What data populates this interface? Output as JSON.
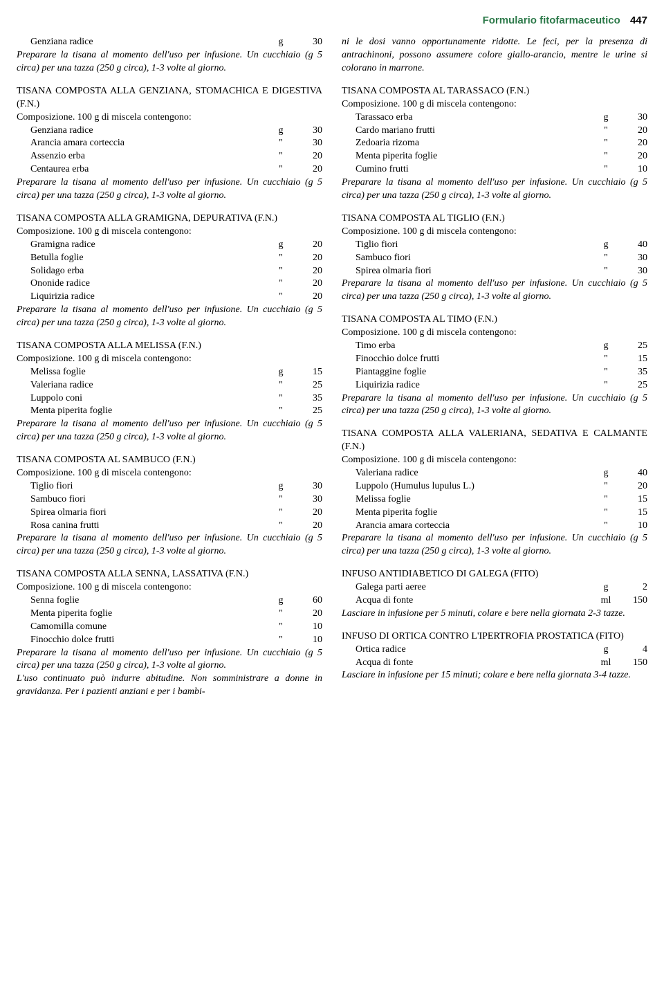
{
  "header": {
    "title": "Formulario fitofarmaceutico",
    "page": "447"
  },
  "comp_text": "Composizione. 100 g di miscela contengono:",
  "instr_std": "Preparare la tisana al momento dell'uso per infusione. Un cucchiaio (g 5 circa) per una tazza (250 g circa), 1-3 volte al giorno.",
  "left": {
    "pre_ingredients": [
      {
        "name": "Genziana radice",
        "unit": "g",
        "amount": "30"
      }
    ],
    "recipes": [
      {
        "title": "TISANA COMPOSTA ALLA GENZIANA, STOMACHICA E DIGESTIVA (F.N.)",
        "ingredients": [
          {
            "name": "Genziana radice",
            "unit": "g",
            "amount": "30"
          },
          {
            "name": "Arancia amara corteccia",
            "unit": "\"",
            "amount": "30"
          },
          {
            "name": "Assenzio erba",
            "unit": "\"",
            "amount": "20"
          },
          {
            "name": "Centaurea erba",
            "unit": "\"",
            "amount": "20"
          }
        ]
      },
      {
        "title": "TISANA COMPOSTA ALLA GRAMIGNA, DEPURATIVA (F.N.)",
        "ingredients": [
          {
            "name": "Gramigna radice",
            "unit": "g",
            "amount": "20"
          },
          {
            "name": "Betulla foglie",
            "unit": "\"",
            "amount": "20"
          },
          {
            "name": "Solidago erba",
            "unit": "\"",
            "amount": "20"
          },
          {
            "name": "Ononide radice",
            "unit": "\"",
            "amount": "20"
          },
          {
            "name": "Liquirizia radice",
            "unit": "\"",
            "amount": "20"
          }
        ]
      },
      {
        "title": "TISANA COMPOSTA ALLA MELISSA (F.N.)",
        "ingredients": [
          {
            "name": "Melissa foglie",
            "unit": "g",
            "amount": "15"
          },
          {
            "name": "Valeriana radice",
            "unit": "\"",
            "amount": "25"
          },
          {
            "name": "Luppolo coni",
            "unit": "\"",
            "amount": "35"
          },
          {
            "name": "Menta piperita foglie",
            "unit": "\"",
            "amount": "25"
          }
        ]
      },
      {
        "title": "TISANA COMPOSTA AL SAMBUCO (F.N.)",
        "ingredients": [
          {
            "name": "Tiglio fiori",
            "unit": "g",
            "amount": "30"
          },
          {
            "name": "Sambuco fiori",
            "unit": "\"",
            "amount": "30"
          },
          {
            "name": "Spirea olmaria fiori",
            "unit": "\"",
            "amount": "20"
          },
          {
            "name": "Rosa canina frutti",
            "unit": "\"",
            "amount": "20"
          }
        ]
      },
      {
        "title": "TISANA COMPOSTA ALLA SENNA, LASSATIVA (F.N.)",
        "ingredients": [
          {
            "name": "Senna foglie",
            "unit": "g",
            "amount": "60"
          },
          {
            "name": "Menta piperita foglie",
            "unit": "\"",
            "amount": "20"
          },
          {
            "name": "Camomilla comune",
            "unit": "\"",
            "amount": "10"
          },
          {
            "name": "Finocchio dolce frutti",
            "unit": "\"",
            "amount": "10"
          }
        ],
        "extra_note": "L'uso continuato può indurre abitudine. Non somministrare a donne in gravidanza. Per i pazienti anziani e per i bambi-"
      }
    ]
  },
  "right": {
    "cont_note": "ni le dosi vanno opportunamente ridotte. Le feci, per la presenza di antrachinoni, possono assumere colore giallo-arancio, mentre le urine si colorano in marrone.",
    "recipes": [
      {
        "title": "TISANA COMPOSTA AL TARASSACO (F.N.)",
        "ingredients": [
          {
            "name": "Tarassaco erba",
            "unit": "g",
            "amount": "30"
          },
          {
            "name": "Cardo mariano frutti",
            "unit": "\"",
            "amount": "20"
          },
          {
            "name": "Zedoaria rizoma",
            "unit": "\"",
            "amount": "20"
          },
          {
            "name": "Menta piperita foglie",
            "unit": "\"",
            "amount": "20"
          },
          {
            "name": "Cumino frutti",
            "unit": "\"",
            "amount": "10"
          }
        ]
      },
      {
        "title": "TISANA COMPOSTA AL TIGLIO (F.N.)",
        "ingredients": [
          {
            "name": "Tiglio fiori",
            "unit": "g",
            "amount": "40"
          },
          {
            "name": "Sambuco fiori",
            "unit": "\"",
            "amount": "30"
          },
          {
            "name": "Spirea olmaria fiori",
            "unit": "\"",
            "amount": "30"
          }
        ]
      },
      {
        "title": "TISANA COMPOSTA AL TIMO (F.N.)",
        "ingredients": [
          {
            "name": "Timo erba",
            "unit": "g",
            "amount": "25"
          },
          {
            "name": "Finocchio dolce frutti",
            "unit": "\"",
            "amount": "15"
          },
          {
            "name": "Piantaggine foglie",
            "unit": "\"",
            "amount": "35"
          },
          {
            "name": "Liquirizia radice",
            "unit": "\"",
            "amount": "25"
          }
        ]
      },
      {
        "title": "TISANA COMPOSTA ALLA VALERIANA, SEDATIVA E CALMANTE (F.N.)",
        "ingredients": [
          {
            "name": "Valeriana radice",
            "unit": "g",
            "amount": "40"
          },
          {
            "name": "Luppolo (Humulus lupulus L.)",
            "unit": "\"",
            "amount": "20"
          },
          {
            "name": "Melissa foglie",
            "unit": "\"",
            "amount": "15"
          },
          {
            "name": "Menta piperita foglie",
            "unit": "\"",
            "amount": "15"
          },
          {
            "name": "Arancia amara corteccia",
            "unit": "\"",
            "amount": "10"
          }
        ]
      }
    ],
    "infusi": [
      {
        "title": "INFUSO ANTIDIABETICO DI GALEGA (FITO)",
        "ingredients": [
          {
            "name": "Galega parti aeree",
            "unit": "g",
            "amount": "2"
          },
          {
            "name": "Acqua di fonte",
            "unit": "ml",
            "amount": "150"
          }
        ],
        "instruction": "Lasciare in infusione per 5 minuti, colare e bere nella giornata 2-3 tazze."
      },
      {
        "title": "INFUSO DI ORTICA CONTRO L'IPERTROFIA PROSTATICA (FITO)",
        "ingredients": [
          {
            "name": "Ortica radice",
            "unit": "g",
            "amount": "4"
          },
          {
            "name": "Acqua di fonte",
            "unit": "ml",
            "amount": "150"
          }
        ],
        "instruction": "Lasciare in infusione per 15 minuti; colare e bere nella giornata 3-4 tazze."
      }
    ]
  }
}
